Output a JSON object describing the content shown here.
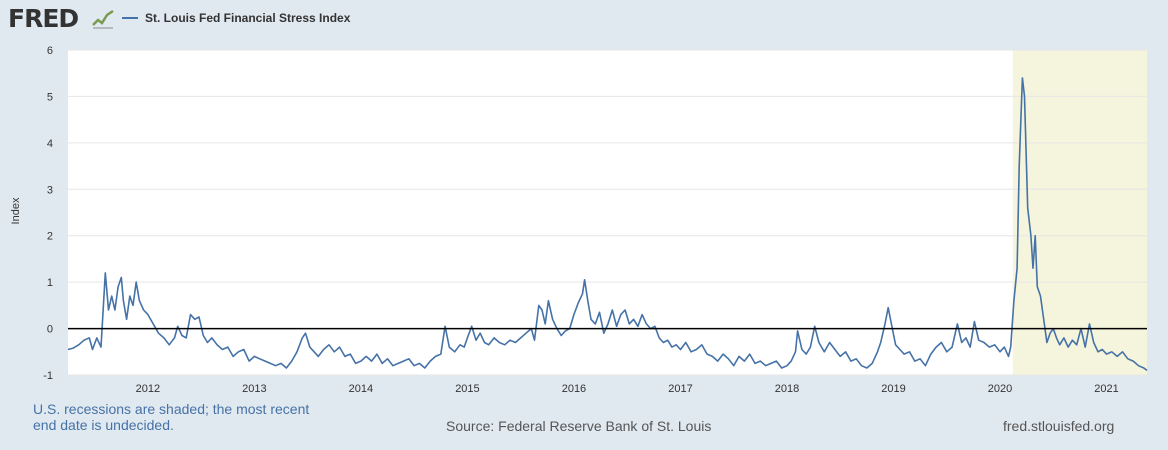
{
  "header": {
    "logo_text": "FRED",
    "logo_icon": "trend-line-icon",
    "legend_label": "St. Louis Fed Financial Stress Index",
    "series_color": "#4572a7"
  },
  "footer": {
    "note_line1": "U.S. recessions are shaded; the most recent",
    "note_line2": "end date is undecided.",
    "source": "Source: Federal Reserve Bank of St. Louis",
    "url": "fred.stlouisfed.org"
  },
  "chart_data": {
    "type": "line",
    "title": "St. Louis Fed Financial Stress Index",
    "xlabel": "",
    "ylabel": "Index",
    "xlim": [
      2011.25,
      2021.38
    ],
    "ylim": [
      -1,
      6
    ],
    "yticks": [
      -1,
      0,
      1,
      2,
      3,
      4,
      5,
      6
    ],
    "xticks": [
      2012,
      2013,
      2014,
      2015,
      2016,
      2017,
      2018,
      2019,
      2020,
      2021
    ],
    "grid": true,
    "zero_line": true,
    "recession_shading": [
      {
        "start": 2020.12,
        "end": 2021.38,
        "color": "#f5f4dc"
      }
    ],
    "series": [
      {
        "name": "St. Louis Fed Financial Stress Index",
        "color": "#4572a7",
        "points": [
          [
            2011.25,
            -0.45
          ],
          [
            2011.3,
            -0.42
          ],
          [
            2011.35,
            -0.35
          ],
          [
            2011.4,
            -0.25
          ],
          [
            2011.45,
            -0.2
          ],
          [
            2011.48,
            -0.45
          ],
          [
            2011.52,
            -0.2
          ],
          [
            2011.56,
            -0.4
          ],
          [
            2011.6,
            1.2
          ],
          [
            2011.63,
            0.4
          ],
          [
            2011.66,
            0.7
          ],
          [
            2011.69,
            0.4
          ],
          [
            2011.72,
            0.9
          ],
          [
            2011.75,
            1.1
          ],
          [
            2011.77,
            0.6
          ],
          [
            2011.8,
            0.2
          ],
          [
            2011.83,
            0.7
          ],
          [
            2011.86,
            0.5
          ],
          [
            2011.89,
            1.0
          ],
          [
            2011.92,
            0.6
          ],
          [
            2011.96,
            0.4
          ],
          [
            2012.0,
            0.3
          ],
          [
            2012.05,
            0.1
          ],
          [
            2012.1,
            -0.1
          ],
          [
            2012.15,
            -0.2
          ],
          [
            2012.2,
            -0.35
          ],
          [
            2012.25,
            -0.2
          ],
          [
            2012.28,
            0.05
          ],
          [
            2012.32,
            -0.15
          ],
          [
            2012.36,
            -0.2
          ],
          [
            2012.4,
            0.3
          ],
          [
            2012.44,
            0.2
          ],
          [
            2012.48,
            0.25
          ],
          [
            2012.52,
            -0.15
          ],
          [
            2012.56,
            -0.3
          ],
          [
            2012.6,
            -0.2
          ],
          [
            2012.65,
            -0.35
          ],
          [
            2012.7,
            -0.45
          ],
          [
            2012.75,
            -0.4
          ],
          [
            2012.8,
            -0.6
          ],
          [
            2012.85,
            -0.5
          ],
          [
            2012.9,
            -0.45
          ],
          [
            2012.95,
            -0.7
          ],
          [
            2013.0,
            -0.6
          ],
          [
            2013.05,
            -0.65
          ],
          [
            2013.1,
            -0.7
          ],
          [
            2013.15,
            -0.75
          ],
          [
            2013.2,
            -0.8
          ],
          [
            2013.25,
            -0.75
          ],
          [
            2013.3,
            -0.85
          ],
          [
            2013.35,
            -0.7
          ],
          [
            2013.4,
            -0.5
          ],
          [
            2013.45,
            -0.2
          ],
          [
            2013.48,
            -0.1
          ],
          [
            2013.52,
            -0.4
          ],
          [
            2013.56,
            -0.5
          ],
          [
            2013.6,
            -0.6
          ],
          [
            2013.65,
            -0.45
          ],
          [
            2013.7,
            -0.35
          ],
          [
            2013.75,
            -0.5
          ],
          [
            2013.8,
            -0.4
          ],
          [
            2013.85,
            -0.6
          ],
          [
            2013.9,
            -0.55
          ],
          [
            2013.95,
            -0.75
          ],
          [
            2014.0,
            -0.7
          ],
          [
            2014.05,
            -0.6
          ],
          [
            2014.1,
            -0.7
          ],
          [
            2014.15,
            -0.55
          ],
          [
            2014.2,
            -0.75
          ],
          [
            2014.25,
            -0.65
          ],
          [
            2014.3,
            -0.8
          ],
          [
            2014.35,
            -0.75
          ],
          [
            2014.4,
            -0.7
          ],
          [
            2014.45,
            -0.65
          ],
          [
            2014.5,
            -0.8
          ],
          [
            2014.55,
            -0.75
          ],
          [
            2014.6,
            -0.85
          ],
          [
            2014.65,
            -0.7
          ],
          [
            2014.7,
            -0.6
          ],
          [
            2014.75,
            -0.55
          ],
          [
            2014.79,
            0.05
          ],
          [
            2014.83,
            -0.4
          ],
          [
            2014.88,
            -0.5
          ],
          [
            2014.93,
            -0.35
          ],
          [
            2014.97,
            -0.4
          ],
          [
            2015.0,
            -0.2
          ],
          [
            2015.04,
            0.05
          ],
          [
            2015.08,
            -0.25
          ],
          [
            2015.12,
            -0.1
          ],
          [
            2015.16,
            -0.3
          ],
          [
            2015.2,
            -0.35
          ],
          [
            2015.25,
            -0.2
          ],
          [
            2015.3,
            -0.3
          ],
          [
            2015.35,
            -0.35
          ],
          [
            2015.4,
            -0.25
          ],
          [
            2015.45,
            -0.3
          ],
          [
            2015.5,
            -0.2
          ],
          [
            2015.55,
            -0.1
          ],
          [
            2015.6,
            0.0
          ],
          [
            2015.63,
            -0.25
          ],
          [
            2015.67,
            0.5
          ],
          [
            2015.7,
            0.4
          ],
          [
            2015.73,
            0.1
          ],
          [
            2015.76,
            0.6
          ],
          [
            2015.8,
            0.2
          ],
          [
            2015.84,
            0.0
          ],
          [
            2015.88,
            -0.15
          ],
          [
            2015.92,
            -0.05
          ],
          [
            2015.96,
            0.0
          ],
          [
            2016.0,
            0.3
          ],
          [
            2016.04,
            0.55
          ],
          [
            2016.08,
            0.75
          ],
          [
            2016.1,
            1.05
          ],
          [
            2016.13,
            0.6
          ],
          [
            2016.16,
            0.2
          ],
          [
            2016.2,
            0.1
          ],
          [
            2016.24,
            0.35
          ],
          [
            2016.28,
            -0.1
          ],
          [
            2016.32,
            0.1
          ],
          [
            2016.36,
            0.4
          ],
          [
            2016.4,
            0.05
          ],
          [
            2016.44,
            0.3
          ],
          [
            2016.48,
            0.4
          ],
          [
            2016.52,
            0.1
          ],
          [
            2016.56,
            0.2
          ],
          [
            2016.6,
            0.05
          ],
          [
            2016.64,
            0.3
          ],
          [
            2016.68,
            0.1
          ],
          [
            2016.72,
            0.0
          ],
          [
            2016.76,
            0.05
          ],
          [
            2016.8,
            -0.2
          ],
          [
            2016.84,
            -0.3
          ],
          [
            2016.88,
            -0.25
          ],
          [
            2016.92,
            -0.4
          ],
          [
            2016.96,
            -0.35
          ],
          [
            2017.0,
            -0.45
          ],
          [
            2017.05,
            -0.3
          ],
          [
            2017.1,
            -0.5
          ],
          [
            2017.15,
            -0.45
          ],
          [
            2017.2,
            -0.35
          ],
          [
            2017.25,
            -0.55
          ],
          [
            2017.3,
            -0.6
          ],
          [
            2017.35,
            -0.7
          ],
          [
            2017.4,
            -0.55
          ],
          [
            2017.45,
            -0.65
          ],
          [
            2017.5,
            -0.8
          ],
          [
            2017.55,
            -0.6
          ],
          [
            2017.6,
            -0.7
          ],
          [
            2017.65,
            -0.55
          ],
          [
            2017.7,
            -0.75
          ],
          [
            2017.75,
            -0.7
          ],
          [
            2017.8,
            -0.8
          ],
          [
            2017.85,
            -0.75
          ],
          [
            2017.9,
            -0.7
          ],
          [
            2017.95,
            -0.85
          ],
          [
            2018.0,
            -0.8
          ],
          [
            2018.04,
            -0.7
          ],
          [
            2018.08,
            -0.5
          ],
          [
            2018.1,
            -0.05
          ],
          [
            2018.14,
            -0.45
          ],
          [
            2018.18,
            -0.55
          ],
          [
            2018.22,
            -0.4
          ],
          [
            2018.26,
            0.05
          ],
          [
            2018.3,
            -0.3
          ],
          [
            2018.35,
            -0.5
          ],
          [
            2018.4,
            -0.3
          ],
          [
            2018.45,
            -0.45
          ],
          [
            2018.5,
            -0.6
          ],
          [
            2018.55,
            -0.5
          ],
          [
            2018.6,
            -0.7
          ],
          [
            2018.65,
            -0.65
          ],
          [
            2018.7,
            -0.8
          ],
          [
            2018.75,
            -0.85
          ],
          [
            2018.8,
            -0.75
          ],
          [
            2018.85,
            -0.5
          ],
          [
            2018.88,
            -0.3
          ],
          [
            2018.92,
            0.1
          ],
          [
            2018.95,
            0.45
          ],
          [
            2018.98,
            0.1
          ],
          [
            2019.02,
            -0.35
          ],
          [
            2019.06,
            -0.45
          ],
          [
            2019.1,
            -0.55
          ],
          [
            2019.15,
            -0.5
          ],
          [
            2019.2,
            -0.7
          ],
          [
            2019.25,
            -0.65
          ],
          [
            2019.3,
            -0.8
          ],
          [
            2019.35,
            -0.55
          ],
          [
            2019.4,
            -0.4
          ],
          [
            2019.45,
            -0.3
          ],
          [
            2019.5,
            -0.5
          ],
          [
            2019.55,
            -0.4
          ],
          [
            2019.6,
            0.1
          ],
          [
            2019.64,
            -0.3
          ],
          [
            2019.68,
            -0.2
          ],
          [
            2019.72,
            -0.4
          ],
          [
            2019.76,
            0.15
          ],
          [
            2019.8,
            -0.25
          ],
          [
            2019.85,
            -0.3
          ],
          [
            2019.9,
            -0.4
          ],
          [
            2019.95,
            -0.35
          ],
          [
            2020.0,
            -0.5
          ],
          [
            2020.04,
            -0.4
          ],
          [
            2020.08,
            -0.6
          ],
          [
            2020.1,
            -0.4
          ],
          [
            2020.13,
            0.6
          ],
          [
            2020.16,
            1.3
          ],
          [
            2020.18,
            3.5
          ],
          [
            2020.21,
            5.4
          ],
          [
            2020.23,
            5.0
          ],
          [
            2020.26,
            2.6
          ],
          [
            2020.29,
            2.0
          ],
          [
            2020.31,
            1.3
          ],
          [
            2020.33,
            2.0
          ],
          [
            2020.35,
            0.9
          ],
          [
            2020.38,
            0.7
          ],
          [
            2020.41,
            0.2
          ],
          [
            2020.44,
            -0.3
          ],
          [
            2020.47,
            -0.1
          ],
          [
            2020.5,
            0.0
          ],
          [
            2020.53,
            -0.2
          ],
          [
            2020.56,
            -0.35
          ],
          [
            2020.6,
            -0.2
          ],
          [
            2020.64,
            -0.4
          ],
          [
            2020.68,
            -0.25
          ],
          [
            2020.72,
            -0.35
          ],
          [
            2020.76,
            0.0
          ],
          [
            2020.8,
            -0.4
          ],
          [
            2020.84,
            0.1
          ],
          [
            2020.88,
            -0.3
          ],
          [
            2020.92,
            -0.5
          ],
          [
            2020.96,
            -0.45
          ],
          [
            2021.0,
            -0.55
          ],
          [
            2021.05,
            -0.5
          ],
          [
            2021.1,
            -0.6
          ],
          [
            2021.15,
            -0.5
          ],
          [
            2021.2,
            -0.65
          ],
          [
            2021.25,
            -0.7
          ],
          [
            2021.3,
            -0.8
          ],
          [
            2021.35,
            -0.85
          ],
          [
            2021.38,
            -0.9
          ]
        ]
      }
    ]
  }
}
